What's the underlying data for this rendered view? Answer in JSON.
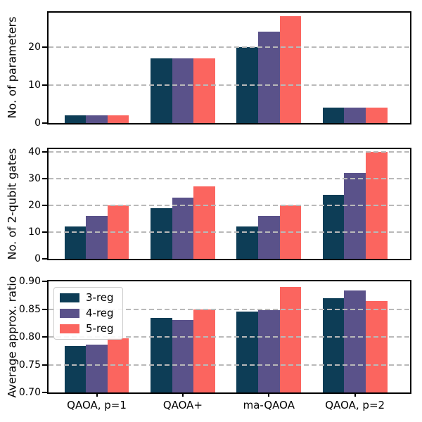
{
  "figure": {
    "background": "#ffffff",
    "series_names": [
      "3-reg",
      "4-reg",
      "5-reg"
    ],
    "series_colors": [
      "#0d3d56",
      "#5a528a",
      "#fb655f"
    ],
    "grid_color": "#b9b9b9"
  },
  "chart_data": [
    {
      "type": "bar",
      "title": "",
      "xlabel": "",
      "ylabel": "No. of parameters",
      "categories": [
        "QAOA, p=1",
        "QAOA+",
        "ma-QAOA",
        "QAOA, p=2"
      ],
      "series": [
        {
          "name": "3-reg",
          "color": "#0d3d56",
          "values": [
            2,
            17,
            20,
            4
          ]
        },
        {
          "name": "4-reg",
          "color": "#5a528a",
          "values": [
            2,
            17,
            24,
            4
          ]
        },
        {
          "name": "5-reg",
          "color": "#fb655f",
          "values": [
            2,
            17,
            28,
            4
          ]
        }
      ],
      "ylim": [
        0,
        29
      ],
      "yticks": [
        0,
        10,
        20
      ],
      "ytick_decimals": 0,
      "grid": "horizontal-dashed",
      "legend": false,
      "show_x_axis_labels": false
    },
    {
      "type": "bar",
      "title": "",
      "xlabel": "",
      "ylabel": "No. of 2-qubit gates",
      "categories": [
        "QAOA, p=1",
        "QAOA+",
        "ma-QAOA",
        "QAOA, p=2"
      ],
      "series": [
        {
          "name": "3-reg",
          "color": "#0d3d56",
          "values": [
            12,
            19,
            12,
            24
          ]
        },
        {
          "name": "4-reg",
          "color": "#5a528a",
          "values": [
            16,
            23,
            16,
            32
          ]
        },
        {
          "name": "5-reg",
          "color": "#fb655f",
          "values": [
            20,
            27,
            20,
            40
          ]
        }
      ],
      "ylim": [
        0,
        41
      ],
      "yticks": [
        0,
        10,
        20,
        30,
        40
      ],
      "ytick_decimals": 0,
      "grid": "horizontal-dashed",
      "legend": false,
      "show_x_axis_labels": false
    },
    {
      "type": "bar",
      "title": "",
      "xlabel": "",
      "ylabel": "Average approx. ratio",
      "categories": [
        "QAOA, p=1",
        "QAOA+",
        "ma-QAOA",
        "QAOA, p=2"
      ],
      "series": [
        {
          "name": "3-reg",
          "color": "#0d3d56",
          "values": [
            0.783,
            0.834,
            0.845,
            0.87
          ]
        },
        {
          "name": "4-reg",
          "color": "#5a528a",
          "values": [
            0.786,
            0.831,
            0.848,
            0.884
          ]
        },
        {
          "name": "5-reg",
          "color": "#fb655f",
          "values": [
            0.797,
            0.85,
            0.89,
            0.864
          ]
        }
      ],
      "ylim": [
        0.7,
        0.9
      ],
      "yticks": [
        0.7,
        0.75,
        0.8,
        0.85,
        0.9
      ],
      "ytick_decimals": 2,
      "grid": "horizontal-dashed",
      "legend": true,
      "legend_position": "upper left",
      "show_x_axis_labels": true
    }
  ]
}
